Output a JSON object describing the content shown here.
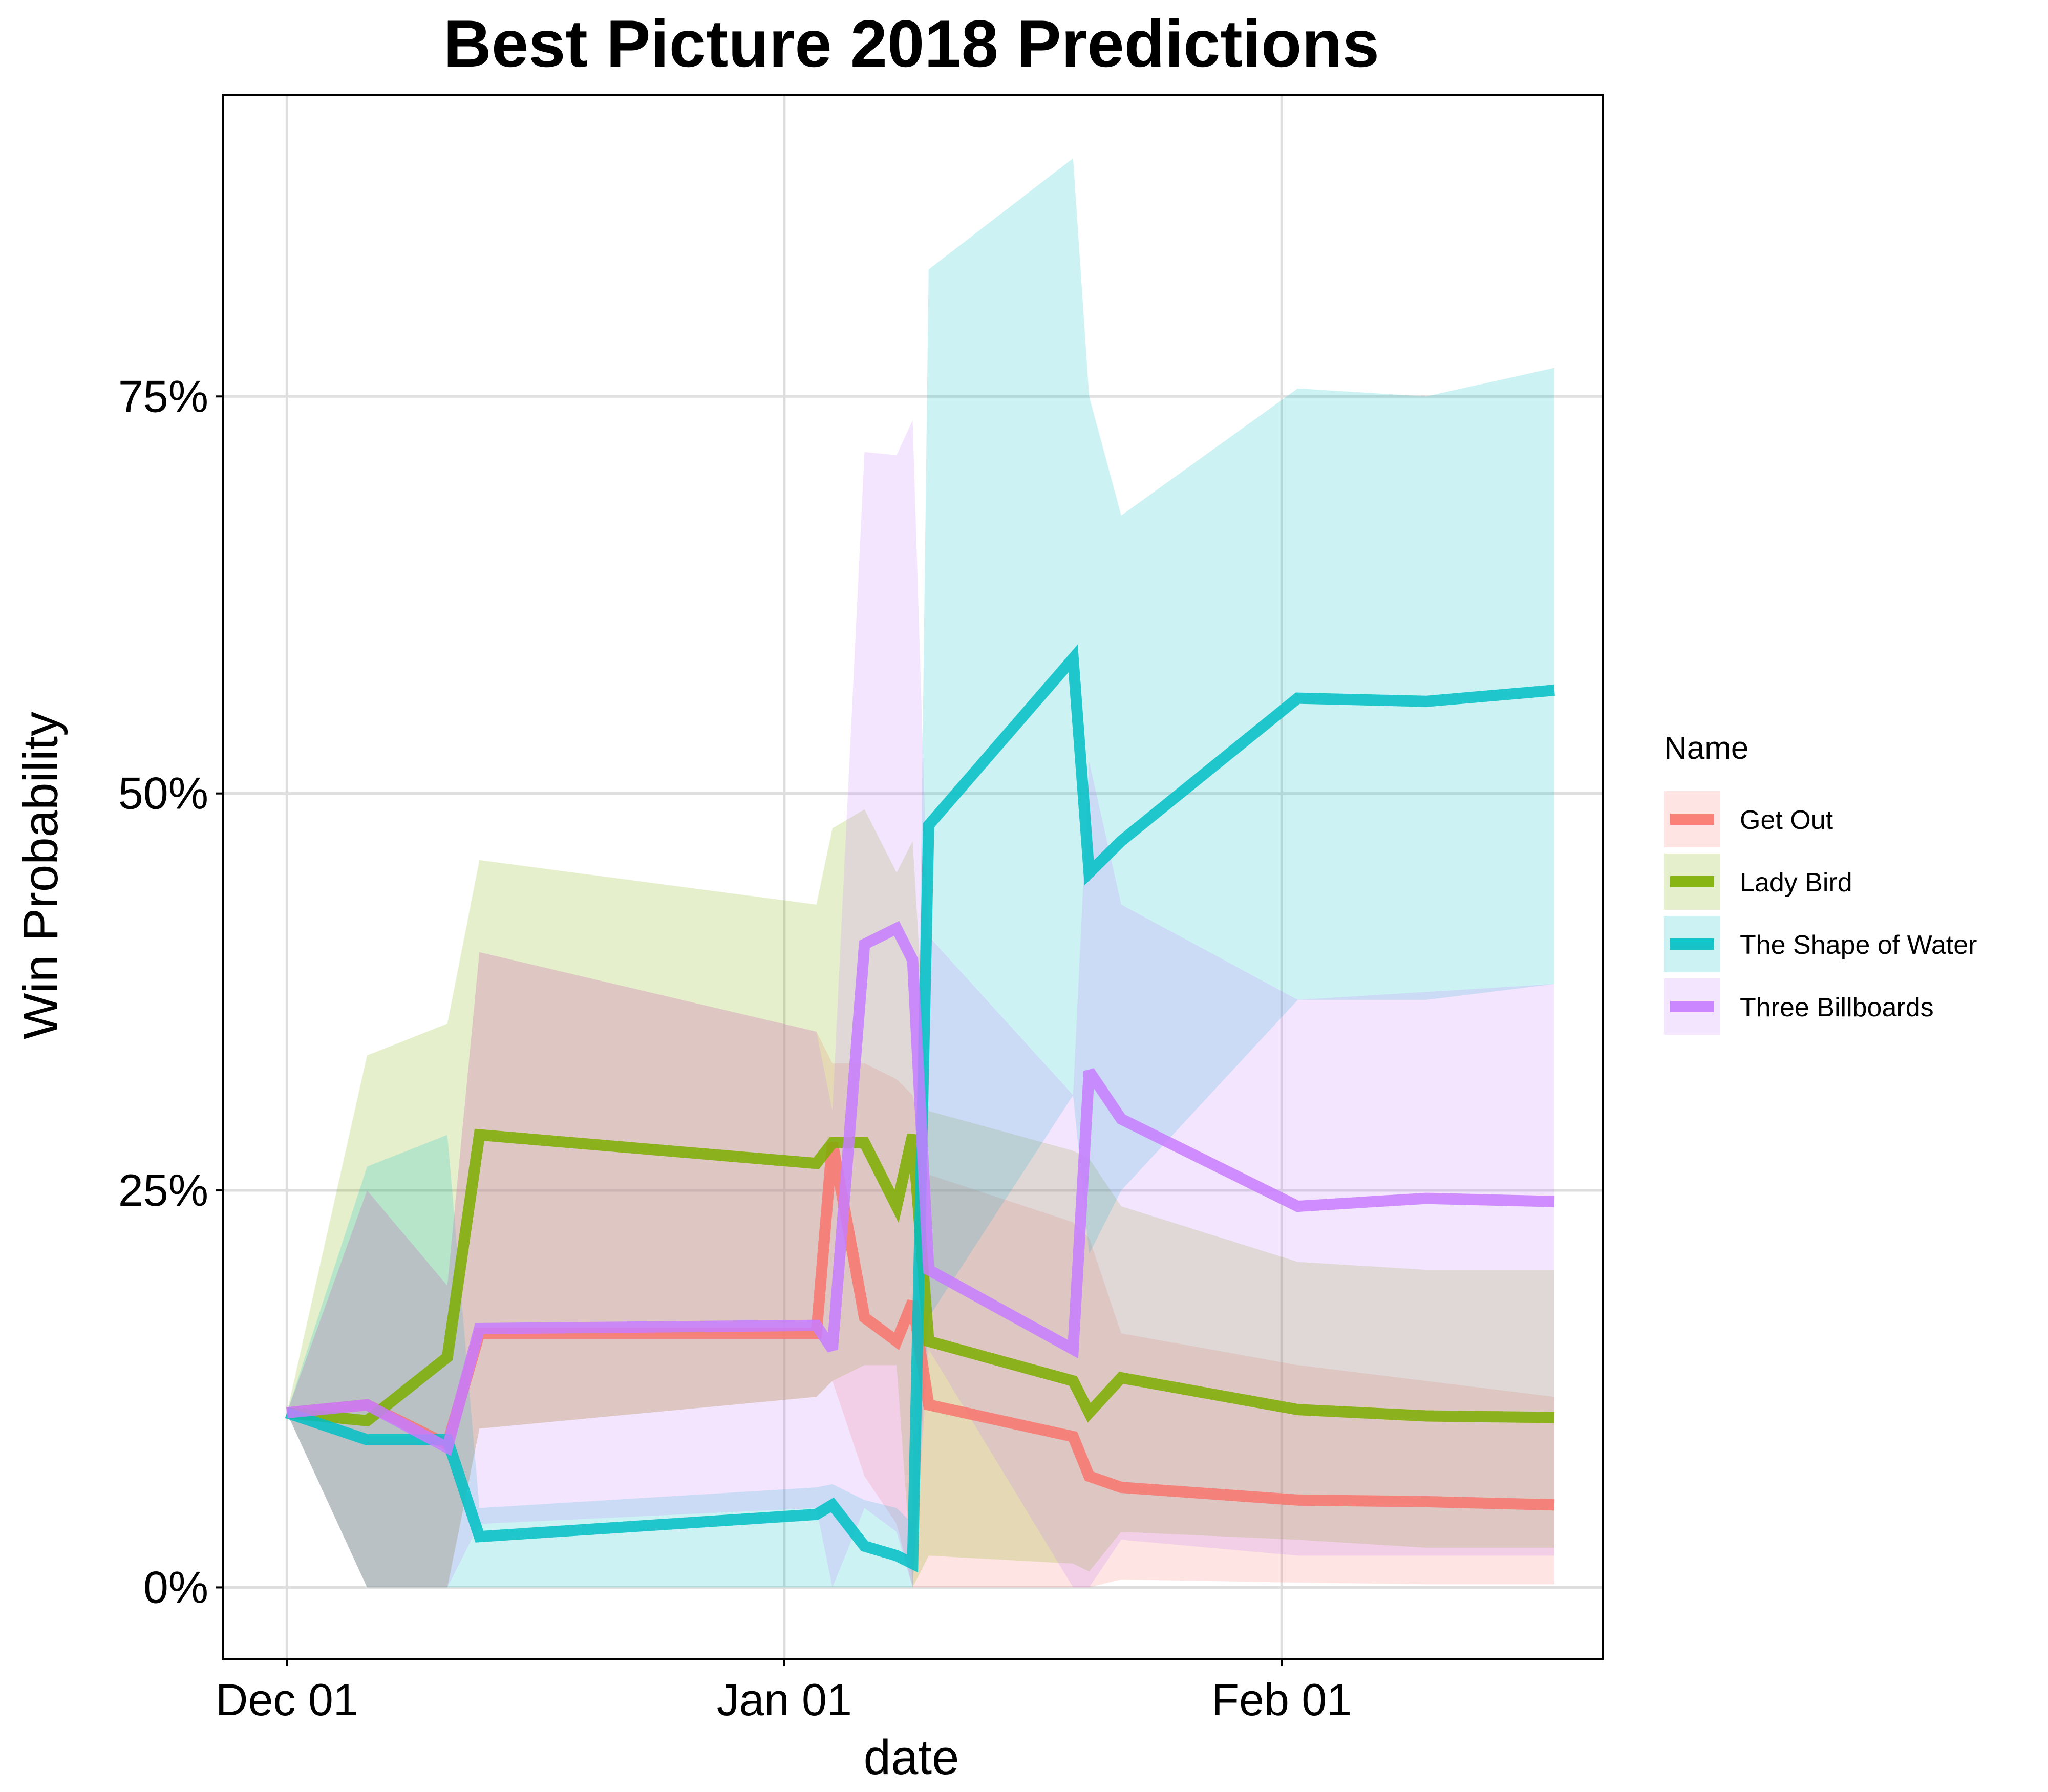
{
  "chart_data": {
    "type": "line",
    "title": "Best Picture 2018 Predictions",
    "xlabel": "date",
    "ylabel": "Win Probability",
    "x_ticks": [
      "Dec 01",
      "Jan 01",
      "Feb 01"
    ],
    "y_ticks": [
      "0%",
      "25%",
      "50%",
      "75%"
    ],
    "xlim": [
      "2017-11-27",
      "2018-02-21"
    ],
    "ylim": [
      -0.045,
      0.94
    ],
    "grid": true,
    "legend": {
      "title": "Name",
      "placement": "right"
    },
    "x": [
      "2017-12-01",
      "2017-12-06",
      "2017-12-11",
      "2017-12-13",
      "2018-01-03",
      "2018-01-04",
      "2018-01-06",
      "2018-01-08",
      "2018-01-09",
      "2018-01-10",
      "2018-01-19",
      "2018-01-20",
      "2018-01-22",
      "2018-02-02",
      "2018-02-10",
      "2018-02-18"
    ],
    "series": [
      {
        "name": "Get Out",
        "color": "#F8766D",
        "values": [
          0.11,
          0.115,
          0.09,
          0.16,
          0.16,
          0.28,
          0.17,
          0.155,
          0.18,
          0.115,
          0.095,
          0.07,
          0.063,
          0.055,
          0.054,
          0.052
        ],
        "lower": [
          0.11,
          0.0,
          0.0,
          0.1,
          0.12,
          0.13,
          0.07,
          0.04,
          0.0,
          0.0,
          0.0,
          0.0,
          0.005,
          0.003,
          0.002,
          0.002
        ],
        "upper": [
          0.11,
          0.25,
          0.19,
          0.4,
          0.35,
          0.33,
          0.33,
          0.32,
          0.31,
          0.26,
          0.23,
          0.22,
          0.16,
          0.14,
          0.13,
          0.12
        ]
      },
      {
        "name": "Lady Bird",
        "color": "#7CAE00",
        "values": [
          0.11,
          0.105,
          0.145,
          0.285,
          0.267,
          0.28,
          0.28,
          0.24,
          0.285,
          0.155,
          0.13,
          0.11,
          0.132,
          0.112,
          0.108,
          0.107
        ],
        "lower": [
          0.11,
          0.0,
          0.0,
          0.1,
          0.12,
          0.13,
          0.14,
          0.14,
          0.0,
          0.02,
          0.015,
          0.01,
          0.035,
          0.03,
          0.025,
          0.025
        ],
        "upper": [
          0.11,
          0.335,
          0.355,
          0.458,
          0.43,
          0.478,
          0.49,
          0.45,
          0.47,
          0.3,
          0.275,
          0.27,
          0.24,
          0.205,
          0.2,
          0.2
        ]
      },
      {
        "name": "The Shape of Water",
        "color": "#00BFC4",
        "values": [
          0.11,
          0.093,
          0.093,
          0.032,
          0.046,
          0.052,
          0.026,
          0.02,
          0.015,
          0.48,
          0.585,
          0.45,
          0.47,
          0.56,
          0.558,
          0.565
        ],
        "lower": [
          0.11,
          0.0,
          0.0,
          0.0,
          0.0,
          0.0,
          0.0,
          0.0,
          0.0,
          0.17,
          0.31,
          0.21,
          0.25,
          0.37,
          0.37,
          0.38
        ],
        "upper": [
          0.11,
          0.265,
          0.285,
          0.05,
          0.063,
          0.065,
          0.055,
          0.05,
          0.04,
          0.83,
          0.9,
          0.75,
          0.675,
          0.755,
          0.75,
          0.768
        ]
      },
      {
        "name": "Three Billboards",
        "color": "#C77CFF",
        "values": [
          0.11,
          0.115,
          0.088,
          0.163,
          0.165,
          0.15,
          0.405,
          0.415,
          0.395,
          0.2,
          0.15,
          0.325,
          0.295,
          0.24,
          0.245,
          0.243
        ],
        "lower": [
          0.11,
          0.0,
          0.0,
          0.04,
          0.05,
          0.0,
          0.05,
          0.035,
          0.0,
          0.15,
          0.0,
          0.0,
          0.03,
          0.02,
          0.02,
          0.02
        ],
        "upper": [
          0.11,
          0.25,
          0.19,
          0.4,
          0.35,
          0.3,
          0.715,
          0.713,
          0.735,
          0.41,
          0.31,
          0.52,
          0.43,
          0.37,
          0.375,
          0.38
        ]
      }
    ]
  }
}
